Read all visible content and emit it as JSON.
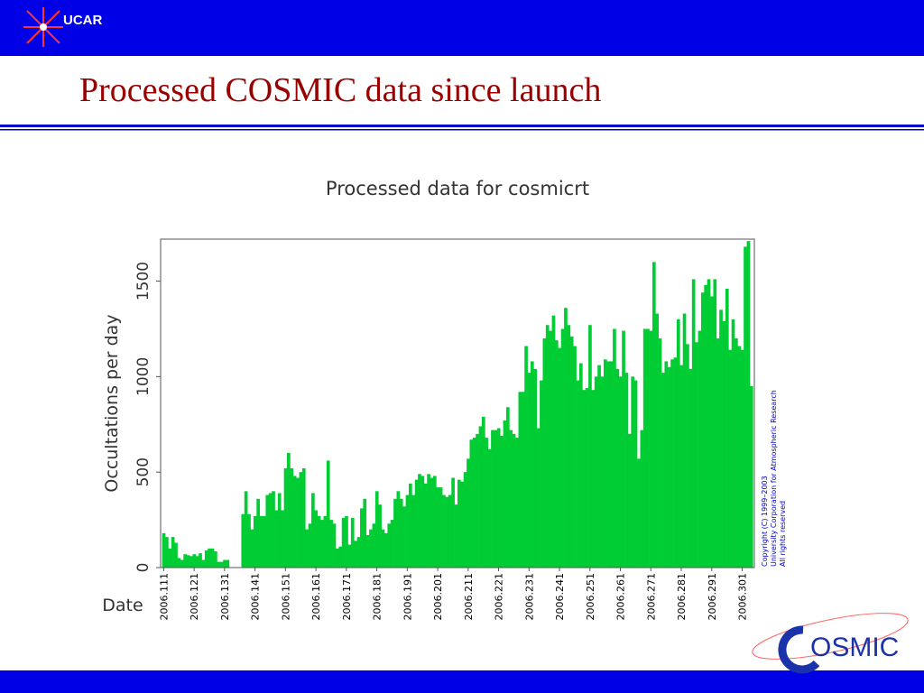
{
  "header": {
    "logo": "UCAR",
    "title": "Processed COSMIC data since launch"
  },
  "footer": {
    "logo": "OSMIC"
  },
  "copyright": [
    "Copyright (C) 1999–2003",
    "University Corporation for Atmospheric Research",
    "All rights reserved"
  ],
  "chart_data": {
    "type": "bar",
    "title": "Processed data for cosmicrt",
    "y_label": "Occultations per day",
    "x_label": "Date",
    "color": "#00cc33",
    "x": [
      2006.111,
      2006.112,
      2006.113,
      2006.114,
      2006.115,
      2006.116,
      2006.117,
      2006.118,
      2006.119,
      2006.12,
      2006.121,
      2006.122,
      2006.123,
      2006.124,
      2006.125,
      2006.126,
      2006.127,
      2006.128,
      2006.129,
      2006.13,
      2006.131,
      2006.132,
      2006.133,
      2006.134,
      2006.135,
      2006.136,
      2006.137,
      2006.138,
      2006.139,
      2006.14,
      2006.141,
      2006.142,
      2006.143,
      2006.144,
      2006.145,
      2006.146,
      2006.147,
      2006.148,
      2006.149,
      2006.15,
      2006.151,
      2006.152,
      2006.153,
      2006.154,
      2006.155,
      2006.156,
      2006.157,
      2006.158,
      2006.159,
      2006.16,
      2006.161,
      2006.162,
      2006.163,
      2006.164,
      2006.165,
      2006.166,
      2006.167,
      2006.168,
      2006.169,
      2006.17,
      2006.171,
      2006.172,
      2006.173,
      2006.174,
      2006.175,
      2006.176,
      2006.177,
      2006.178,
      2006.179,
      2006.18,
      2006.181,
      2006.182,
      2006.183,
      2006.184,
      2006.185,
      2006.186,
      2006.187,
      2006.188,
      2006.189,
      2006.19,
      2006.191,
      2006.192,
      2006.193,
      2006.194,
      2006.195,
      2006.196,
      2006.197,
      2006.198,
      2006.199,
      2006.2,
      2006.201,
      2006.202,
      2006.203,
      2006.204,
      2006.205,
      2006.206,
      2006.207,
      2006.208,
      2006.209,
      2006.21,
      2006.211,
      2006.212,
      2006.213,
      2006.214,
      2006.215,
      2006.216,
      2006.217,
      2006.218,
      2006.219,
      2006.22,
      2006.221,
      2006.222,
      2006.223,
      2006.224,
      2006.225,
      2006.226,
      2006.227,
      2006.228,
      2006.229,
      2006.23,
      2006.231,
      2006.232,
      2006.233,
      2006.234,
      2006.235,
      2006.236,
      2006.237,
      2006.238,
      2006.239,
      2006.24,
      2006.241,
      2006.242,
      2006.243,
      2006.244,
      2006.245,
      2006.246,
      2006.247,
      2006.248,
      2006.249,
      2006.25,
      2006.251,
      2006.252,
      2006.253,
      2006.254,
      2006.255,
      2006.256,
      2006.257,
      2006.258,
      2006.259,
      2006.26,
      2006.261,
      2006.262,
      2006.263,
      2006.264,
      2006.265,
      2006.266,
      2006.267,
      2006.268,
      2006.269,
      2006.27,
      2006.271,
      2006.272,
      2006.273,
      2006.274,
      2006.275,
      2006.276,
      2006.277,
      2006.278,
      2006.279,
      2006.28,
      2006.281,
      2006.282,
      2006.283,
      2006.284,
      2006.285,
      2006.286,
      2006.287,
      2006.288,
      2006.289,
      2006.29,
      2006.291,
      2006.292,
      2006.293,
      2006.294,
      2006.295,
      2006.296,
      2006.297,
      2006.298,
      2006.299,
      2006.3,
      2006.301,
      2006.302,
      2006.303,
      2006.304
    ],
    "values": [
      180,
      160,
      100,
      160,
      130,
      50,
      40,
      70,
      65,
      60,
      70,
      60,
      75,
      40,
      90,
      100,
      100,
      85,
      30,
      30,
      40,
      40,
      0,
      0,
      0,
      0,
      280,
      400,
      280,
      200,
      270,
      360,
      270,
      270,
      380,
      390,
      400,
      300,
      390,
      300,
      520,
      600,
      520,
      480,
      470,
      500,
      520,
      200,
      230,
      390,
      300,
      270,
      250,
      270,
      560,
      250,
      230,
      100,
      110,
      260,
      270,
      120,
      260,
      140,
      160,
      310,
      360,
      170,
      200,
      230,
      400,
      330,
      200,
      180,
      230,
      250,
      360,
      400,
      360,
      320,
      380,
      440,
      380,
      460,
      490,
      480,
      440,
      490,
      470,
      480,
      420,
      420,
      380,
      370,
      380,
      470,
      330,
      460,
      450,
      500,
      570,
      670,
      680,
      700,
      740,
      790,
      680,
      620,
      720,
      720,
      730,
      690,
      770,
      840,
      720,
      700,
      680,
      920,
      920,
      1160,
      1020,
      1080,
      1040,
      730,
      980,
      1200,
      1270,
      1240,
      1320,
      1190,
      1150,
      1250,
      1360,
      1270,
      1210,
      1160,
      980,
      1070,
      930,
      940,
      1270,
      930,
      1000,
      1060,
      1000,
      1090,
      1080,
      1080,
      1250,
      1040,
      1000,
      1240,
      1020,
      700,
      1000,
      980,
      570,
      720,
      1250,
      1250,
      1240,
      1600,
      1330,
      1200,
      1020,
      1080,
      1050,
      1090,
      1100,
      1300,
      1060,
      1330,
      1170,
      1040,
      1510,
      1180,
      1240,
      1440,
      1480,
      1510,
      1420,
      1510,
      1200,
      1350,
      1290,
      1460,
      1140,
      1300,
      1200,
      1160,
      1140,
      1680,
      1710,
      950
    ],
    "xlim": [
      2006.11,
      2006.305
    ],
    "xticks": [
      2006.111,
      2006.121,
      2006.131,
      2006.141,
      2006.151,
      2006.161,
      2006.171,
      2006.181,
      2006.191,
      2006.201,
      2006.211,
      2006.221,
      2006.231,
      2006.241,
      2006.251,
      2006.261,
      2006.271,
      2006.281,
      2006.291,
      2006.301
    ],
    "ylim": [
      0,
      1720
    ],
    "yticks": [
      0,
      500,
      1000,
      1500
    ]
  }
}
